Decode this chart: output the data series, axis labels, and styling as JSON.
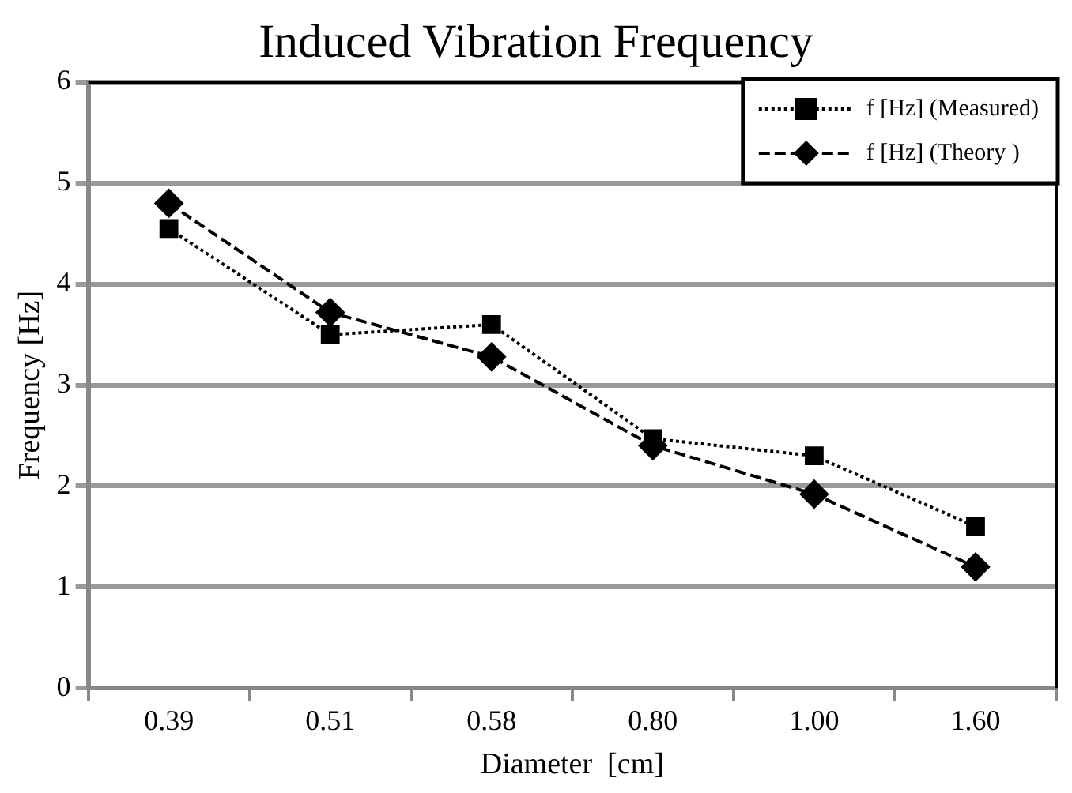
{
  "chart_data": {
    "type": "line",
    "title": "Induced Vibration Frequency",
    "xlabel": "Diameter  [cm]",
    "ylabel": "Frequency [Hz]",
    "categories": [
      "0.39",
      "0.51",
      "0.58",
      "0.80",
      "1.00",
      "1.60"
    ],
    "series": [
      {
        "name": "f [Hz] (Measured)",
        "color": "#000000",
        "marker": "square",
        "line_style": "dotted",
        "values": [
          4.55,
          3.5,
          3.6,
          2.47,
          2.3,
          1.6
        ]
      },
      {
        "name": "f [Hz] (Theory )",
        "color": "#000000",
        "marker": "diamond",
        "line_style": "dashed",
        "values": [
          4.8,
          3.72,
          3.28,
          2.4,
          1.92,
          1.2
        ]
      }
    ],
    "ylim": [
      0,
      6
    ],
    "yticks": [
      0,
      1,
      2,
      3,
      4,
      5,
      6
    ],
    "grid": "y",
    "legend": "top right"
  }
}
